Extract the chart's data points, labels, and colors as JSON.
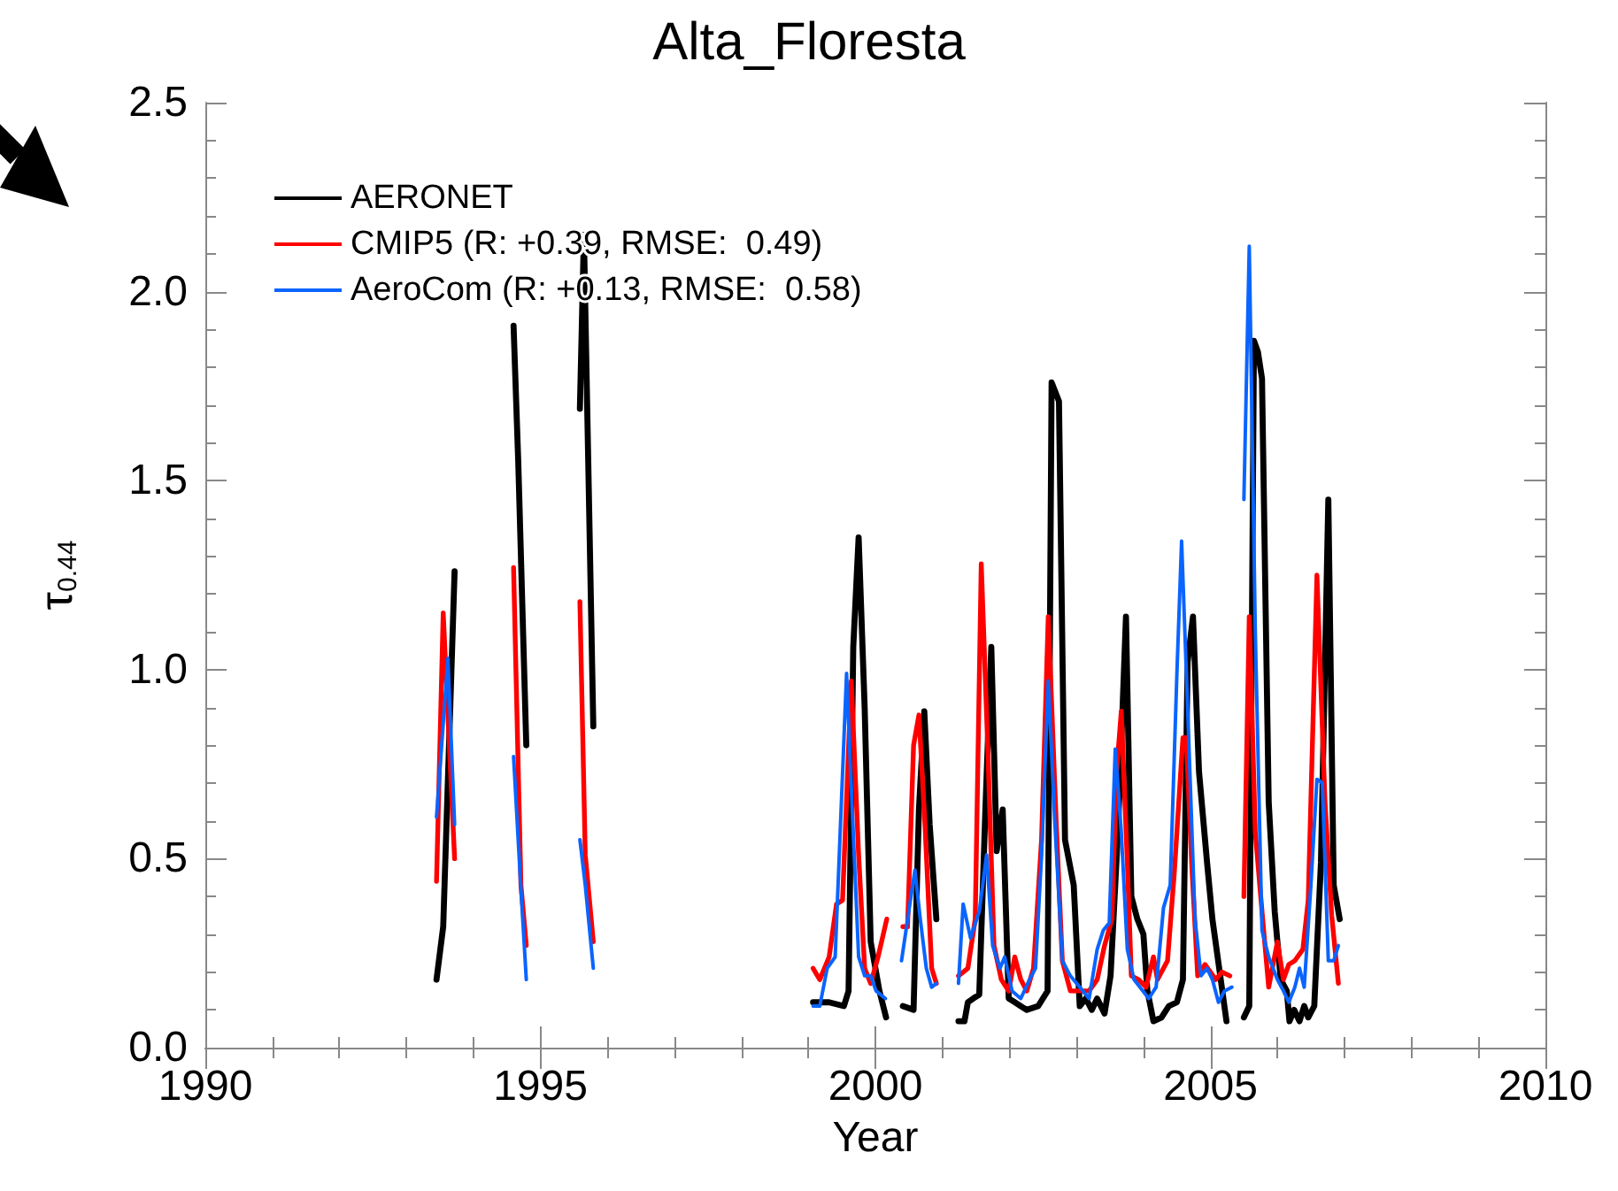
{
  "chart_data": {
    "type": "line",
    "title": "Alta_Floresta",
    "xlabel": "Year",
    "ylabel": "τ$_{0.44}$",
    "xlim": [
      1990,
      2010
    ],
    "xticks": [
      1990,
      1995,
      2000,
      2005,
      2010
    ],
    "ylim": [
      0,
      2.5
    ],
    "yticks": [
      {
        "value": 0,
        "label": "0.0"
      },
      0.5,
      {
        "value": 1,
        "label": "1.0"
      },
      1.5,
      {
        "value": 2,
        "label": "2.0"
      },
      2.5
    ],
    "grid": false,
    "legend": "top left",
    "marker": "none",
    "line_style": "solid",
    "series": [
      {
        "name": "AERONET",
        "color": "#000000",
        "x": [
          1993.45,
          1993.55,
          1993.72,
          1994.2,
          1994.6,
          1994.67,
          1994.79,
          1995.2,
          1995.59,
          1995.65,
          1995.79,
          1997.0,
          1999.07,
          1999.31,
          1999.53,
          1999.6,
          1999.67,
          1999.75,
          1999.84,
          1999.93,
          2000.06,
          2000.16,
          2000.3,
          2000.41,
          2000.57,
          2000.65,
          2000.73,
          2000.81,
          2000.91,
          2001.1,
          2001.24,
          2001.33,
          2001.38,
          2001.46,
          2001.55,
          2001.64,
          2001.73,
          2001.81,
          2001.9,
          2001.99,
          2002.08,
          2002.17,
          2002.26,
          2002.43,
          2002.57,
          2002.63,
          2002.74,
          2002.83,
          2002.96,
          2003.05,
          2003.14,
          2003.23,
          2003.31,
          2003.42,
          2003.51,
          2003.62,
          2003.74,
          2003.82,
          2003.91,
          2004.0,
          2004.06,
          2004.15,
          2004.27,
          2004.38,
          2004.5,
          2004.59,
          2004.66,
          2004.74,
          2004.83,
          2004.95,
          2005.03,
          2005.17,
          2005.24,
          2005.4,
          2005.5,
          2005.58,
          2005.65,
          2005.71,
          2005.77,
          2005.87,
          2005.96,
          2006.05,
          2006.14,
          2006.18,
          2006.25,
          2006.33,
          2006.4,
          2006.46,
          2006.55,
          2006.65,
          2006.76,
          2006.84,
          2006.93
        ],
        "values": [
          0.18,
          0.32,
          1.26,
          null,
          1.91,
          1.55,
          0.8,
          null,
          1.69,
          2.15,
          0.85,
          null,
          0.12,
          0.12,
          0.11,
          0.15,
          1.06,
          1.35,
          0.9,
          0.28,
          0.15,
          0.08,
          null,
          0.11,
          0.1,
          0.63,
          0.89,
          0.59,
          0.34,
          null,
          0.07,
          0.07,
          0.12,
          0.13,
          0.14,
          0.62,
          1.06,
          0.52,
          0.63,
          0.13,
          0.12,
          0.11,
          0.1,
          0.11,
          0.15,
          1.76,
          1.71,
          0.55,
          0.43,
          0.11,
          0.13,
          0.1,
          0.13,
          0.09,
          0.19,
          0.57,
          1.14,
          0.4,
          0.34,
          0.3,
          0.15,
          0.07,
          0.08,
          0.11,
          0.12,
          0.18,
          1.02,
          1.14,
          0.73,
          0.49,
          0.34,
          0.16,
          0.07,
          null,
          0.08,
          0.11,
          1.87,
          1.84,
          1.77,
          0.65,
          0.36,
          0.18,
          0.15,
          0.07,
          0.1,
          0.07,
          0.11,
          0.08,
          0.11,
          0.49,
          1.45,
          0.43,
          0.34
        ]
      },
      {
        "name": "CMIP5 (R: +0.39, RMSE:  0.49)",
        "color": "#ff0000",
        "x": [
          1993.45,
          1993.55,
          1993.72,
          1994.2,
          1994.6,
          1994.71,
          1994.79,
          1995.2,
          1995.59,
          1995.67,
          1995.79,
          1997.0,
          1999.07,
          1999.17,
          1999.31,
          1999.42,
          1999.51,
          1999.64,
          1999.75,
          1999.84,
          1999.93,
          2000.04,
          2000.17,
          2000.3,
          2000.41,
          2000.48,
          2000.57,
          2000.65,
          2000.74,
          2000.84,
          2000.91,
          2001.1,
          2001.24,
          2001.38,
          2001.49,
          2001.58,
          2001.68,
          2001.77,
          2001.88,
          2001.99,
          2002.08,
          2002.17,
          2002.26,
          2002.36,
          2002.48,
          2002.58,
          2002.7,
          2002.79,
          2002.91,
          2003.05,
          2003.19,
          2003.31,
          2003.42,
          2003.53,
          2003.6,
          2003.67,
          2003.76,
          2003.82,
          2003.93,
          2004.04,
          2004.15,
          2004.21,
          2004.36,
          2004.46,
          2004.59,
          2004.64,
          2004.72,
          2004.81,
          2004.92,
          2005.08,
          2005.17,
          2005.29,
          2005.4,
          2005.5,
          2005.58,
          2005.67,
          2005.78,
          2005.87,
          2006.0,
          2006.09,
          2006.17,
          2006.26,
          2006.38,
          2006.46,
          2006.59,
          2006.71,
          2006.81,
          2006.91
        ],
        "values": [
          0.44,
          1.15,
          0.5,
          null,
          1.27,
          0.43,
          0.27,
          null,
          1.18,
          0.51,
          0.28,
          null,
          0.21,
          0.18,
          0.24,
          0.38,
          0.39,
          0.97,
          0.51,
          0.21,
          0.17,
          0.24,
          0.34,
          null,
          0.32,
          0.32,
          0.8,
          0.88,
          0.59,
          0.21,
          0.17,
          null,
          0.19,
          0.21,
          0.34,
          1.28,
          0.78,
          0.27,
          0.18,
          0.15,
          0.24,
          0.18,
          0.15,
          0.21,
          0.55,
          1.14,
          0.59,
          0.23,
          0.15,
          0.15,
          0.15,
          0.18,
          0.27,
          0.34,
          0.73,
          0.89,
          0.49,
          0.19,
          0.18,
          0.16,
          0.24,
          0.18,
          0.23,
          0.46,
          0.82,
          0.82,
          0.49,
          0.19,
          0.22,
          0.18,
          0.2,
          0.19,
          null,
          0.4,
          1.14,
          0.57,
          0.34,
          0.16,
          0.28,
          0.18,
          0.22,
          0.23,
          0.26,
          0.39,
          1.25,
          0.65,
          0.35,
          0.17
        ]
      },
      {
        "name": "AeroCom (R: +0.13, RMSE:  0.58)",
        "color": "#0a64ff",
        "x": [
          1993.45,
          1993.62,
          1993.72,
          1994.2,
          1994.6,
          1994.71,
          1994.79,
          1995.2,
          1995.59,
          1995.67,
          1995.79,
          1997.0,
          1999.07,
          1999.17,
          1999.28,
          1999.4,
          1999.57,
          1999.65,
          1999.75,
          1999.84,
          1999.93,
          2000.01,
          2000.15,
          2000.3,
          2000.39,
          2000.59,
          2000.67,
          2000.76,
          2000.84,
          2000.91,
          2001.1,
          2001.24,
          2001.31,
          2001.42,
          2001.55,
          2001.66,
          2001.75,
          2001.86,
          2001.93,
          2002.04,
          2002.17,
          2002.3,
          2002.39,
          2002.48,
          2002.58,
          2002.68,
          2002.79,
          2002.91,
          2003.05,
          2003.19,
          2003.31,
          2003.4,
          2003.49,
          2003.58,
          2003.67,
          2003.76,
          2003.86,
          2003.95,
          2004.08,
          2004.19,
          2004.3,
          2004.4,
          2004.5,
          2004.57,
          2004.68,
          2004.77,
          2004.86,
          2004.95,
          2005.03,
          2005.12,
          2005.21,
          2005.32,
          2005.4,
          2005.5,
          2005.58,
          2005.67,
          2005.77,
          2005.87,
          2006.0,
          2006.09,
          2006.17,
          2006.26,
          2006.33,
          2006.4,
          2006.5,
          2006.59,
          2006.67,
          2006.76,
          2006.84,
          2006.91
        ],
        "values": [
          0.61,
          1.03,
          0.59,
          null,
          0.77,
          0.42,
          0.18,
          null,
          0.55,
          0.43,
          0.21,
          null,
          0.11,
          0.11,
          0.21,
          0.24,
          0.99,
          0.65,
          0.24,
          0.19,
          0.19,
          0.15,
          0.13,
          null,
          0.23,
          0.47,
          0.34,
          0.21,
          0.16,
          0.17,
          null,
          0.17,
          0.38,
          0.29,
          0.36,
          0.51,
          0.27,
          0.21,
          0.24,
          0.15,
          0.13,
          0.18,
          0.21,
          0.51,
          0.97,
          0.59,
          0.23,
          0.19,
          0.16,
          0.13,
          0.26,
          0.31,
          0.33,
          0.79,
          0.57,
          0.26,
          0.18,
          0.16,
          0.13,
          0.16,
          0.37,
          0.43,
          0.99,
          1.34,
          0.8,
          0.34,
          0.19,
          0.21,
          0.18,
          0.12,
          0.15,
          0.16,
          null,
          1.45,
          2.12,
          1.1,
          0.31,
          0.24,
          0.18,
          0.15,
          0.12,
          0.16,
          0.21,
          0.16,
          0.43,
          0.71,
          0.7,
          0.23,
          0.23,
          0.27
        ]
      }
    ]
  }
}
